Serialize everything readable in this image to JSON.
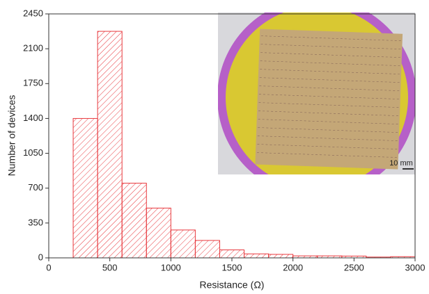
{
  "chart_data": {
    "type": "histogram",
    "x_label": "Resistance (Ω)",
    "y_label": "Number of devices",
    "bins": [
      200,
      400,
      600,
      800,
      1000,
      1200,
      1400,
      1600,
      1800,
      2000,
      2200,
      2400,
      2600,
      2800,
      3000
    ],
    "values": [
      1400,
      2275,
      750,
      500,
      280,
      175,
      80,
      40,
      35,
      20,
      20,
      18,
      8,
      12
    ],
    "color": "#e8383d",
    "xlim": [
      0,
      3000
    ],
    "xticks": [
      0,
      500,
      1000,
      1500,
      2000,
      2500,
      3000
    ],
    "ylim": [
      0,
      2450
    ],
    "yticks": [
      0,
      350,
      700,
      1050,
      1400,
      1750,
      2100,
      2450
    ],
    "inset_scale_label": "10 mm"
  }
}
